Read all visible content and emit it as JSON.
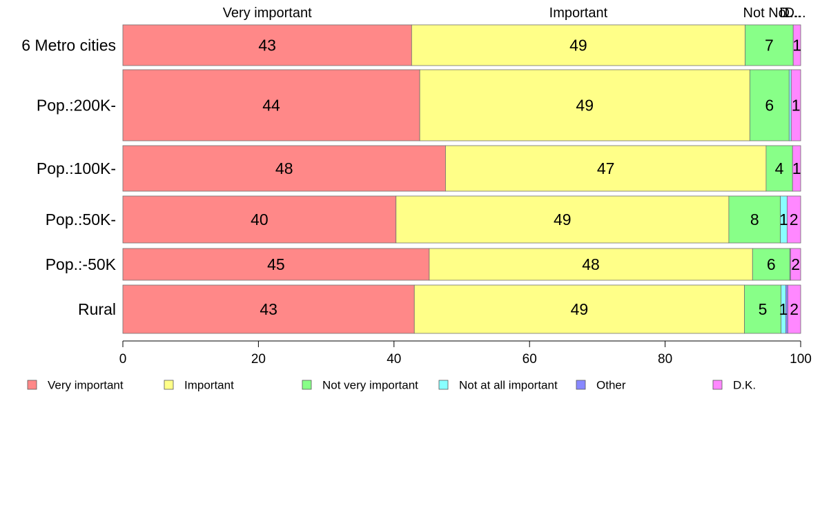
{
  "chart_data": {
    "type": "bar",
    "orientation": "horizontal",
    "stacked": true,
    "categories": [
      "6 Metro cities",
      "Pop.:200K-",
      "Pop.:100K-",
      "Pop.:50K-",
      "Pop.:-50K",
      "Rural"
    ],
    "series": [
      {
        "name": "Very important",
        "color": "#ff8888",
        "values": [
          42.6,
          43.8,
          47.6,
          40.3,
          45.2,
          43.0
        ]
      },
      {
        "name": "Important",
        "color": "#ffff88",
        "values": [
          49.2,
          48.7,
          47.3,
          49.1,
          47.7,
          48.7
        ]
      },
      {
        "name": "Not very important",
        "color": "#88ff88",
        "values": [
          7.1,
          5.8,
          3.9,
          7.6,
          5.5,
          5.4
        ]
      },
      {
        "name": "Not at all important",
        "color": "#88ffff",
        "values": [
          0.0,
          0.3,
          0.0,
          1.0,
          0.1,
          0.7
        ]
      },
      {
        "name": "Other",
        "color": "#8888ff",
        "values": [
          0.0,
          0.0,
          0.0,
          0.0,
          0.0,
          0.3
        ]
      },
      {
        "name": "D.K.",
        "color": "#ff88ff",
        "values": [
          1.1,
          1.4,
          1.2,
          2.0,
          1.5,
          1.9
        ]
      }
    ],
    "data_labels": [
      [
        "43",
        "49",
        "7",
        "",
        "",
        "1"
      ],
      [
        "44",
        "49",
        "6",
        "",
        "",
        "1"
      ],
      [
        "48",
        "47",
        "4",
        "",
        "",
        "1"
      ],
      [
        "40",
        "49",
        "8",
        "1",
        "",
        "2"
      ],
      [
        "45",
        "48",
        "6",
        "",
        "",
        "2"
      ],
      [
        "43",
        "49",
        "5",
        "1",
        "",
        "2"
      ]
    ],
    "top_labels": [
      "Very important",
      "Important",
      "Not Nö...",
      "D...",
      "D..."
    ],
    "xlim": [
      0,
      100
    ],
    "x_ticks": [
      0,
      20,
      40,
      60,
      80,
      100
    ],
    "legend_placement": "bottom",
    "grid": false
  }
}
